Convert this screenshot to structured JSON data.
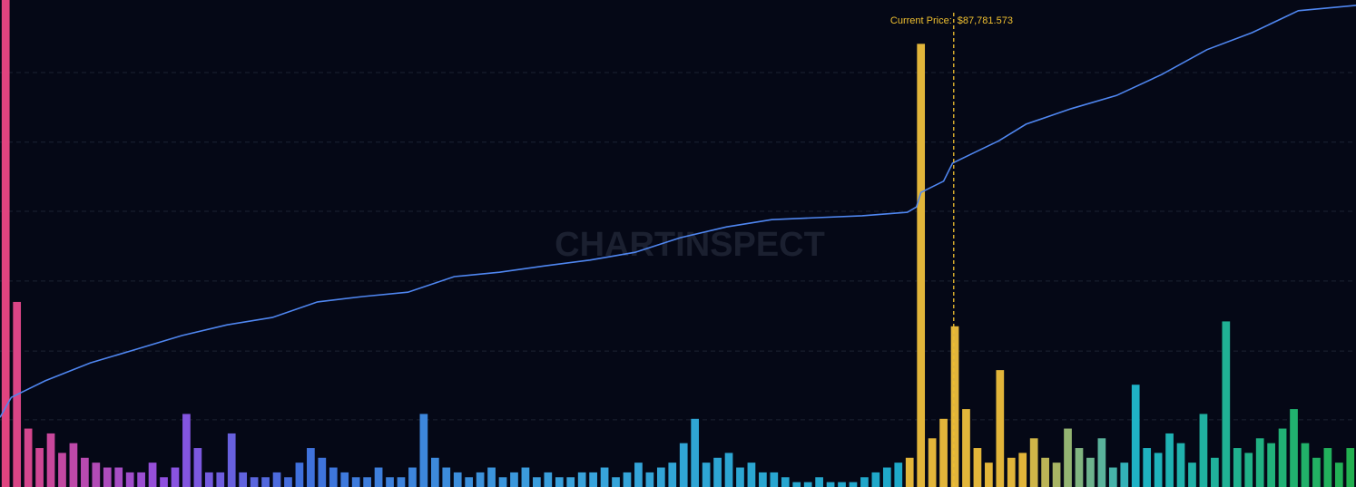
{
  "chart_data": {
    "type": "bar",
    "watermark": "CHARTINSPECT",
    "xlim": [
      0,
      120
    ],
    "ylim": [
      0,
      100
    ],
    "gridlines": [
      13.8,
      27.9,
      42.3,
      56.6,
      70.8,
      85.1
    ],
    "background": "#050816",
    "grid_color": "#1c2233",
    "color_stops": [
      [
        0,
        "#e0447f"
      ],
      [
        14,
        "#9050e0"
      ],
      [
        26,
        "#3f70dc"
      ],
      [
        50,
        "#3aa3dc"
      ],
      [
        79,
        "#1ea8c8"
      ],
      [
        80,
        "#e2b53a"
      ],
      [
        90,
        "#e2b53a"
      ],
      [
        100,
        "#1fb2c6"
      ],
      [
        119,
        "#22b050"
      ]
    ],
    "values": [
      100,
      38,
      12,
      8,
      11,
      7,
      9,
      6,
      5,
      4,
      4,
      3,
      3,
      5,
      2,
      4,
      15,
      8,
      3,
      3,
      11,
      3,
      2,
      2,
      3,
      2,
      5,
      8,
      6,
      4,
      3,
      2,
      2,
      4,
      2,
      2,
      4,
      15,
      6,
      4,
      3,
      2,
      3,
      4,
      2,
      3,
      4,
      2,
      3,
      2,
      2,
      3,
      3,
      4,
      2,
      3,
      5,
      3,
      4,
      5,
      9,
      14,
      5,
      6,
      7,
      4,
      5,
      3,
      3,
      2,
      1,
      1,
      2,
      1,
      1,
      1,
      2,
      3,
      4,
      5,
      6,
      91,
      10,
      14,
      33,
      16,
      8,
      5,
      24,
      6,
      7,
      10,
      6,
      5,
      12,
      8,
      6,
      10,
      4,
      5,
      21,
      8,
      7,
      11,
      9,
      5,
      15,
      6,
      34,
      8,
      7,
      10,
      9,
      12,
      16,
      9,
      6,
      8,
      5,
      8
    ],
    "line": {
      "color": "#4f86f0",
      "x": [
        0,
        1,
        4,
        8,
        12.1,
        16.1,
        20.1,
        24.1,
        28.1,
        32.1,
        36.1,
        40.2,
        44.2,
        48.2,
        52.2,
        56.2,
        60.2,
        64.3,
        68.3,
        72.3,
        76.3,
        80.3,
        81.1,
        81.5,
        83.5,
        84.3,
        85.9,
        88.4,
        90.8,
        94.8,
        98.8,
        102.8,
        106.8,
        110.8,
        114.9,
        120
      ],
      "values": [
        14.3,
        18.4,
        21.8,
        25.5,
        28.3,
        31.1,
        33.3,
        34.8,
        38,
        39.1,
        40,
        43.2,
        44.1,
        45.4,
        46.6,
        48.2,
        51.2,
        53.4,
        54.9,
        55.3,
        55.7,
        56.4,
        57.5,
        60.5,
        62.8,
        66.5,
        68.3,
        71.1,
        74.5,
        77.7,
        80.4,
        84.7,
        89.8,
        93.3,
        97.8,
        98.9
      ]
    },
    "current_price": {
      "x": 84.4,
      "label": "Current Price:",
      "value_label": "$87,781.573",
      "color": "#f0c030"
    }
  }
}
